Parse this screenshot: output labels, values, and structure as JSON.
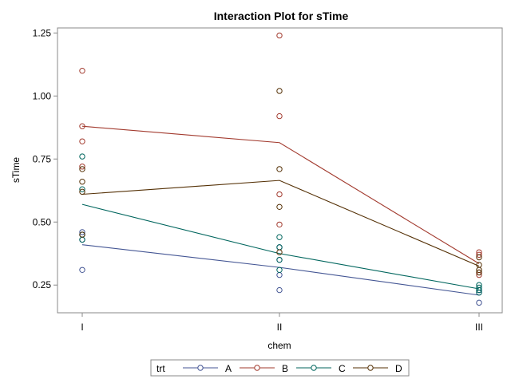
{
  "chart_data": {
    "type": "line",
    "title": "Interaction Plot for sTime",
    "xlabel": "chem",
    "ylabel": "sTime",
    "categories": [
      "I",
      "II",
      "III"
    ],
    "ylim": [
      0.14,
      1.27
    ],
    "yticks": [
      0.25,
      0.5,
      0.75,
      1.0,
      1.25
    ],
    "ytick_labels": [
      "0.25",
      "0.50",
      "0.75",
      "1.00",
      "1.25"
    ],
    "grid": false,
    "legend": {
      "title": "trt",
      "placement": "bottom",
      "entries": [
        "A",
        "B",
        "C",
        "D"
      ]
    },
    "series": [
      {
        "name": "A",
        "color": "#445694",
        "means": [
          0.41,
          0.32,
          0.21
        ],
        "points": [
          [
            0.31,
            0.45,
            0.46,
            0.43
          ],
          [
            0.29,
            0.23,
            0.35,
            0.4
          ],
          [
            0.22,
            0.18,
            0.23,
            0.23
          ]
        ]
      },
      {
        "name": "B",
        "color": "#a23a2e",
        "means": [
          0.88,
          0.815,
          0.335
        ],
        "points": [
          [
            0.82,
            1.1,
            0.88,
            0.72
          ],
          [
            0.92,
            0.61,
            1.24,
            0.49
          ],
          [
            0.3,
            0.37,
            0.38,
            0.29
          ]
        ]
      },
      {
        "name": "C",
        "color": "#01665e",
        "means": [
          0.57,
          0.375,
          0.235
        ],
        "points": [
          [
            0.43,
            0.45,
            0.63,
            0.76
          ],
          [
            0.44,
            0.35,
            0.31,
            0.4
          ],
          [
            0.23,
            0.25,
            0.24,
            0.22
          ]
        ]
      },
      {
        "name": "D",
        "color": "#543005",
        "means": [
          0.61,
          0.665,
          0.325
        ],
        "points": [
          [
            0.45,
            0.71,
            0.66,
            0.62
          ],
          [
            0.56,
            1.02,
            0.71,
            0.38
          ],
          [
            0.3,
            0.36,
            0.31,
            0.33
          ]
        ]
      }
    ]
  }
}
